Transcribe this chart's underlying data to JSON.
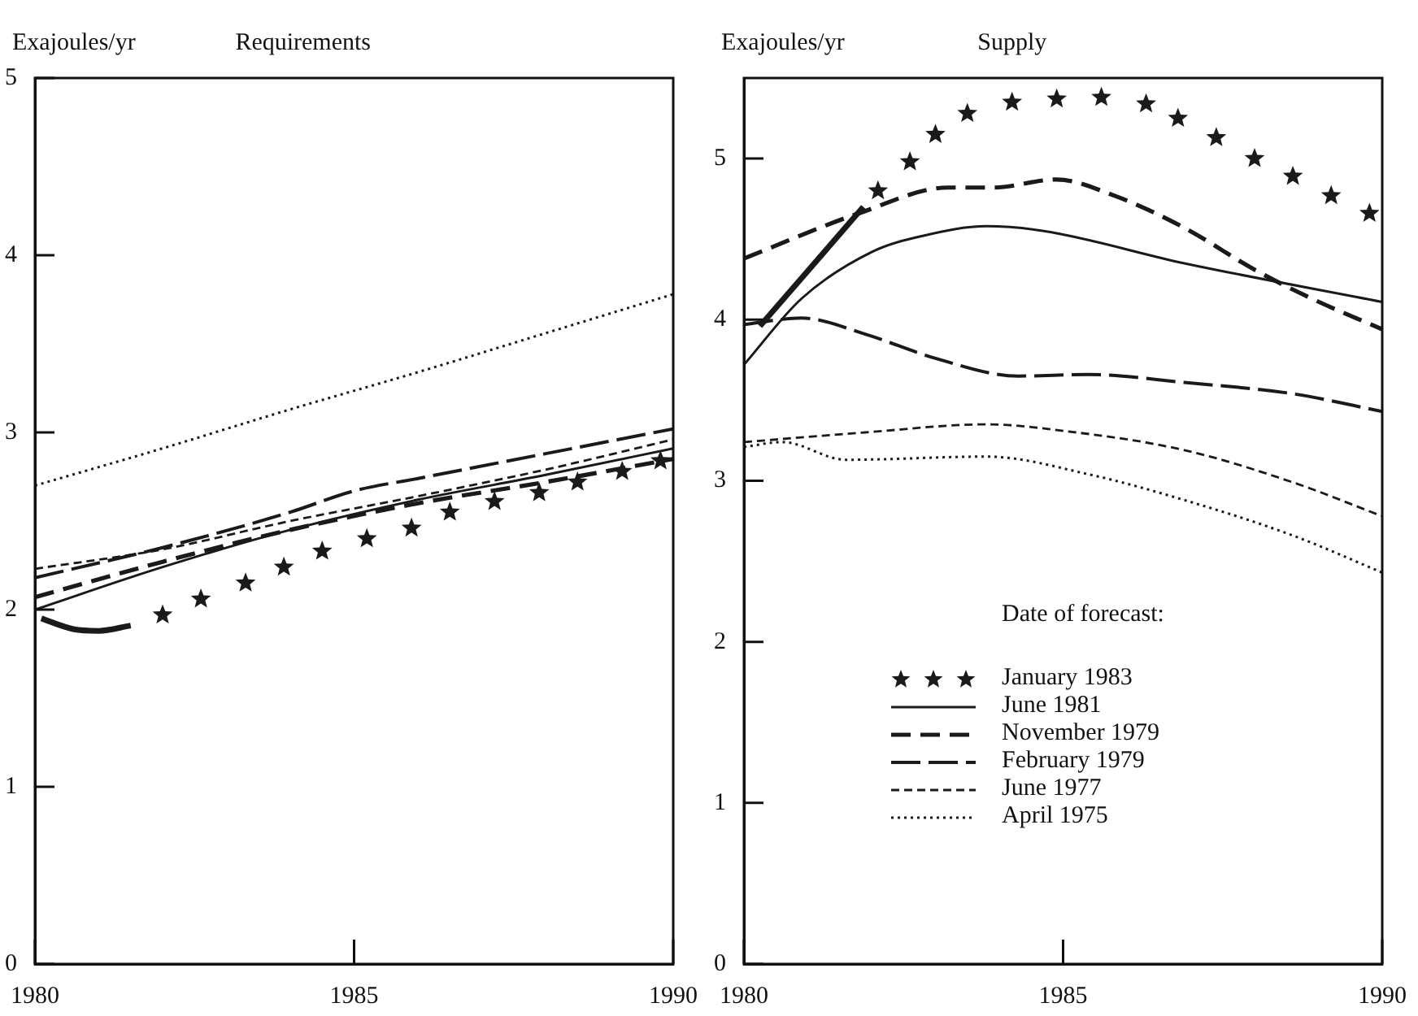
{
  "chart_data": [
    {
      "type": "line",
      "title": "Requirements",
      "ylabel": "Exajoules/yr",
      "xlim": [
        1980,
        1990
      ],
      "xticks": [
        1980,
        1985,
        1990
      ],
      "ylim": [
        0,
        5
      ],
      "yticks": [
        0,
        1,
        2,
        3,
        4,
        5
      ],
      "series": [
        {
          "type": "scatter",
          "marker": "star",
          "color": "#1a1a1a",
          "x": [
            1982.0,
            1982.6,
            1983.3,
            1983.9,
            1984.5,
            1985.2,
            1985.9,
            1986.5,
            1987.2,
            1987.9,
            1988.5,
            1989.2,
            1989.8
          ],
          "values": [
            1.97,
            2.06,
            2.15,
            2.24,
            2.33,
            2.4,
            2.46,
            2.55,
            2.61,
            2.66,
            2.72,
            2.78,
            2.84
          ]
        },
        {
          "color": "#1a1a1a",
          "line_style": "solid",
          "x": [
            1980.1,
            1980.6,
            1981.0,
            1981.5
          ],
          "values": [
            1.95,
            1.89,
            1.88,
            1.91
          ]
        },
        {
          "color": "#1a1a1a",
          "line_style": "solid",
          "x": [
            1980,
            1982,
            1984,
            1986,
            1988,
            1990
          ],
          "values": [
            2.0,
            2.24,
            2.45,
            2.62,
            2.76,
            2.91
          ]
        },
        {
          "color": "#1a1a1a",
          "line_style": "dashed",
          "x": [
            1980,
            1982,
            1984,
            1986,
            1988,
            1990
          ],
          "values": [
            2.07,
            2.27,
            2.45,
            2.6,
            2.72,
            2.85
          ]
        },
        {
          "color": "#1a1a1a",
          "line_style": "dashed",
          "x": [
            1980,
            1982,
            1984,
            1985,
            1986,
            1988,
            1990
          ],
          "values": [
            2.18,
            2.35,
            2.55,
            2.67,
            2.74,
            2.88,
            3.02
          ]
        },
        {
          "color": "#1a1a1a",
          "line_style": "dashed",
          "x": [
            1980,
            1982,
            1984,
            1986,
            1988,
            1990
          ],
          "values": [
            2.23,
            2.34,
            2.5,
            2.64,
            2.79,
            2.96
          ]
        },
        {
          "color": "#1a1a1a",
          "line_style": "dotted",
          "x": [
            1980,
            1982,
            1984,
            1986,
            1988,
            1990
          ],
          "values": [
            2.7,
            2.91,
            3.13,
            3.34,
            3.56,
            3.78
          ]
        }
      ]
    },
    {
      "type": "line",
      "title": "Supply",
      "ylabel": "Exajoules/yr",
      "legend_title": "Date of forecast:",
      "legend": "bottom",
      "xlim": [
        1980,
        1990
      ],
      "xticks": [
        1980,
        1985,
        1990
      ],
      "ylim": [
        0,
        5.5
      ],
      "yticks": [
        0,
        1,
        2,
        3,
        4,
        5
      ],
      "series": [
        {
          "name": "January 1983",
          "type": "scatter",
          "marker": "star",
          "color": "#1a1a1a",
          "x": [
            1982.1,
            1982.6,
            1983.0,
            1983.5,
            1984.2,
            1984.9,
            1985.6,
            1986.3,
            1986.8,
            1987.4,
            1988.0,
            1988.6,
            1989.2,
            1989.8
          ],
          "values": [
            4.8,
            4.98,
            5.15,
            5.28,
            5.35,
            5.37,
            5.38,
            5.34,
            5.25,
            5.13,
            5.0,
            4.89,
            4.77,
            4.66
          ]
        },
        {
          "color": "#1a1a1a",
          "line_style": "solid",
          "x": [
            1980.25,
            1981.87
          ],
          "values": [
            3.96,
            4.7
          ]
        },
        {
          "name": "June 1981",
          "color": "#1a1a1a",
          "line_style": "solid",
          "x": [
            1980,
            1980.9,
            1982.0,
            1982.8,
            1983.8,
            1984.7,
            1986.9,
            1990
          ],
          "values": [
            3.72,
            4.13,
            4.42,
            4.52,
            4.58,
            4.55,
            4.35,
            4.11
          ]
        },
        {
          "name": "November 1979",
          "color": "#1a1a1a",
          "line_style": "dashed",
          "x": [
            1980,
            1981.8,
            1983.2,
            1983.9,
            1984.9,
            1985.8,
            1986.9,
            1988.0,
            1988.9,
            1990
          ],
          "values": [
            4.38,
            4.66,
            4.82,
            4.82,
            4.87,
            4.77,
            4.57,
            4.31,
            4.13,
            3.94
          ]
        },
        {
          "name": "February 1979",
          "color": "#1a1a1a",
          "line_style": "dashed",
          "x": [
            1980,
            1980.9,
            1981.9,
            1983.0,
            1984.3,
            1985.4,
            1986.9,
            1988.6,
            1990
          ],
          "values": [
            3.97,
            4.01,
            3.91,
            3.76,
            3.65,
            3.66,
            3.61,
            3.54,
            3.43
          ]
        },
        {
          "name": "June 1977",
          "color": "#1a1a1a",
          "line_style": "dashed",
          "x": [
            1980,
            1981.9,
            1983.8,
            1985.0,
            1986.9,
            1988.6,
            1990
          ],
          "values": [
            3.24,
            3.3,
            3.35,
            3.31,
            3.19,
            2.99,
            2.78
          ]
        },
        {
          "name": "April 1975",
          "color": "#1a1a1a",
          "line_style": "dotted",
          "x": [
            1980,
            1980.6,
            1981.6,
            1983.8,
            1985.4,
            1986.9,
            1988.6,
            1990
          ],
          "values": [
            3.21,
            3.24,
            3.13,
            3.15,
            3.04,
            2.88,
            2.66,
            2.43
          ]
        }
      ]
    }
  ]
}
